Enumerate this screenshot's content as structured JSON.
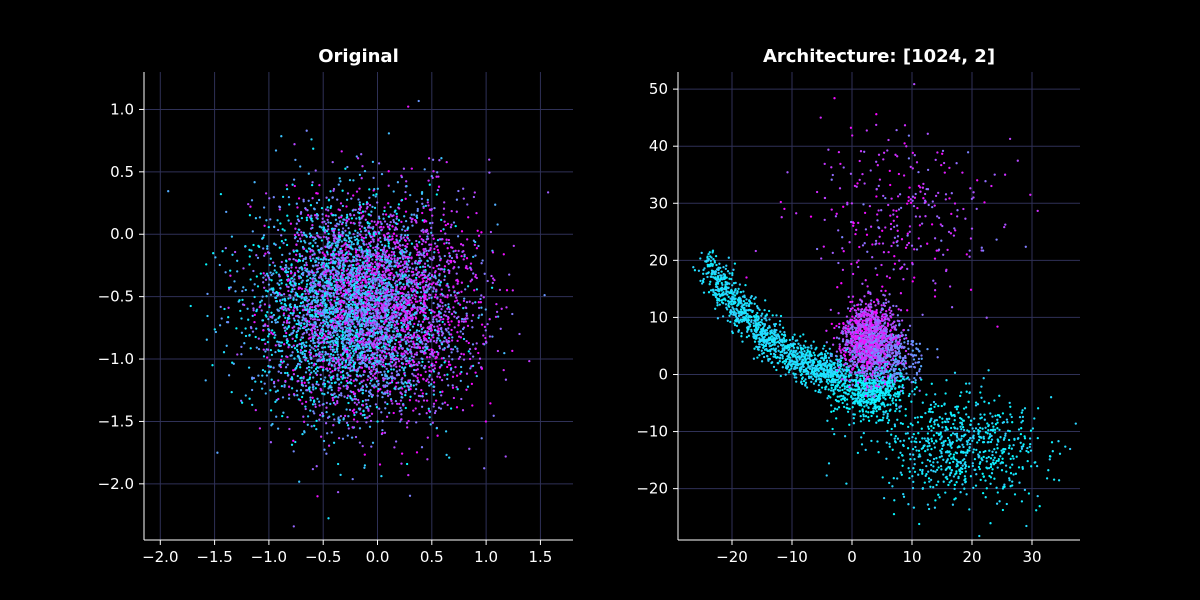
{
  "chart_data": [
    {
      "type": "scatter",
      "title": "Original",
      "xlabel": "",
      "ylabel": "",
      "xlim": [
        -2.15,
        1.8
      ],
      "ylim": [
        -2.45,
        1.3
      ],
      "xticks": [
        -2.0,
        -1.5,
        -1.0,
        -0.5,
        0.0,
        0.5,
        1.0,
        1.5
      ],
      "xtick_labels": [
        "−2.0",
        "−1.5",
        "−1.0",
        "−0.5",
        "0.0",
        "0.5",
        "1.0",
        "1.5"
      ],
      "yticks": [
        1.0,
        0.5,
        0.0,
        -0.5,
        -1.0,
        -1.5,
        -2.0
      ],
      "ytick_labels": [
        "1.0",
        "0.5",
        "0.0",
        "−0.5",
        "−1.0",
        "−1.5",
        "−2.0"
      ],
      "grid": true,
      "point_count": 6000,
      "colormap": [
        "#00ffff",
        "#4fb0ff",
        "#a855ff",
        "#ff00ff"
      ],
      "distribution": {
        "center": [
          -0.12,
          -0.58
        ],
        "std": [
          0.45,
          0.42
        ],
        "note_clusters": [
          {
            "color_range": [
              0.0,
              0.5
            ],
            "center": [
              -0.35,
              -0.62
            ]
          },
          {
            "color_range": [
              0.5,
              1.0
            ],
            "center": [
              0.1,
              -0.55
            ]
          }
        ]
      }
    },
    {
      "type": "scatter",
      "title": "Architecture: [1024, 2]",
      "xlabel": "",
      "ylabel": "",
      "xlim": [
        -29,
        38
      ],
      "ylim": [
        -29,
        53
      ],
      "xticks": [
        -20,
        -10,
        0,
        10,
        20,
        30
      ],
      "xtick_labels": [
        "−20",
        "−10",
        "0",
        "10",
        "20",
        "30"
      ],
      "yticks": [
        50,
        40,
        30,
        20,
        10,
        0,
        -10,
        -20
      ],
      "ytick_labels": [
        "50",
        "40",
        "30",
        "20",
        "10",
        "0",
        "−10",
        "−20"
      ],
      "grid": true,
      "point_count": 4500,
      "colormap": [
        "#00ffff",
        "#4fb0ff",
        "#a855ff",
        "#ff00ff"
      ],
      "structure": {
        "cyan_arm_from": [
          -24,
          19
        ],
        "cyan_arm_to": [
          -2,
          0
        ],
        "cyan_tail_center": [
          18,
          -13
        ],
        "magenta_core_center": [
          3,
          6
        ],
        "magenta_spray_center": [
          8,
          28
        ]
      }
    }
  ]
}
